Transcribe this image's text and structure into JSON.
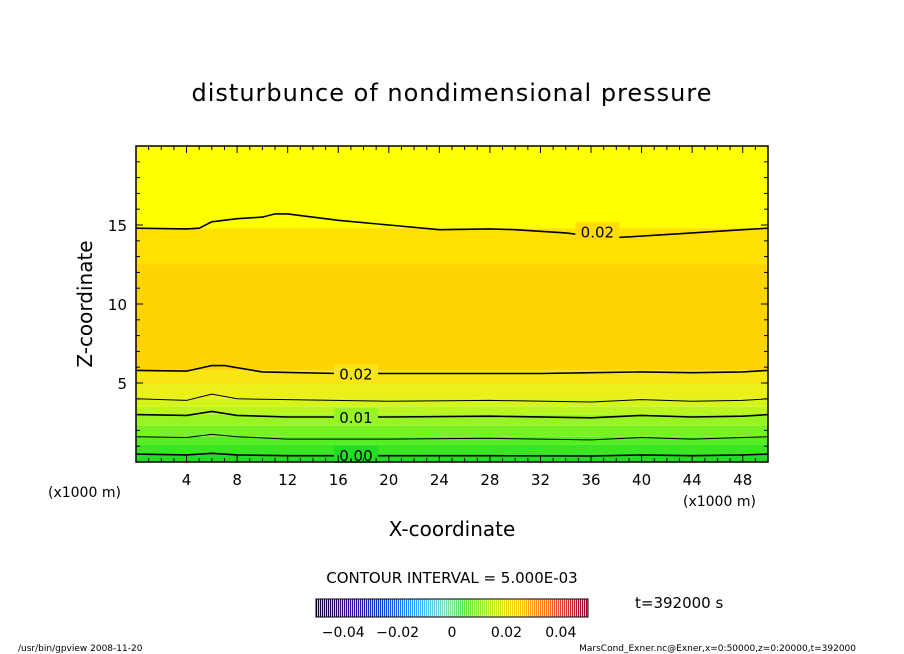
{
  "chart_data": {
    "type": "heatmap",
    "title": "disturbunce of nondimensional pressure",
    "xlabel": "X-coordinate",
    "ylabel": "Z-coordinate",
    "x_unit_left": "(x1000 m)",
    "x_unit_right": "(x1000 m)",
    "xlim": [
      0,
      50
    ],
    "ylim": [
      0,
      20
    ],
    "x_ticks": [
      4,
      8,
      12,
      16,
      20,
      24,
      28,
      32,
      36,
      40,
      44,
      48
    ],
    "y_ticks": [
      5,
      10,
      15
    ],
    "x_tick_labels": [
      "4",
      "8",
      "12",
      "16",
      "20",
      "24",
      "28",
      "32",
      "36",
      "40",
      "44",
      "48"
    ],
    "y_tick_labels": [
      "5",
      "10",
      "15"
    ],
    "contour_interval_text": "CONTOUR INTERVAL = 5.000E-03",
    "time_text": "t=392000 s",
    "colorbar": {
      "min": -0.05,
      "max": 0.05,
      "tick_values": [
        -0.04,
        -0.02,
        0,
        0.02,
        0.04
      ],
      "tick_labels": [
        "−0.04",
        "−0.02",
        "0",
        "0.02",
        "0.04"
      ]
    },
    "contours": [
      {
        "level": 0.02,
        "label": "0.02",
        "label_x": 36.5,
        "label_y": 14.6,
        "points": [
          [
            0,
            14.8
          ],
          [
            4,
            14.75
          ],
          [
            5,
            14.8
          ],
          [
            6,
            15.2
          ],
          [
            8,
            15.4
          ],
          [
            10,
            15.5
          ],
          [
            11,
            15.7
          ],
          [
            12,
            15.7
          ],
          [
            16,
            15.3
          ],
          [
            20,
            15.0
          ],
          [
            24,
            14.7
          ],
          [
            28,
            14.75
          ],
          [
            30,
            14.7
          ],
          [
            34,
            14.5
          ],
          [
            36,
            14.3
          ],
          [
            38,
            14.2
          ],
          [
            40,
            14.3
          ],
          [
            44,
            14.5
          ],
          [
            48,
            14.7
          ],
          [
            50,
            14.8
          ]
        ]
      },
      {
        "level": 0.02,
        "label": "0.02",
        "label_x": 17.4,
        "label_y": 5.6,
        "points": [
          [
            0,
            5.8
          ],
          [
            4,
            5.75
          ],
          [
            6,
            6.1
          ],
          [
            7,
            6.1
          ],
          [
            10,
            5.7
          ],
          [
            16,
            5.6
          ],
          [
            24,
            5.6
          ],
          [
            32,
            5.6
          ],
          [
            36,
            5.65
          ],
          [
            40,
            5.7
          ],
          [
            44,
            5.65
          ],
          [
            48,
            5.7
          ],
          [
            50,
            5.8
          ]
        ]
      },
      {
        "level": 0.015,
        "label": "",
        "label_x": 0,
        "label_y": 0,
        "points": [
          [
            0,
            4.0
          ],
          [
            4,
            3.9
          ],
          [
            6,
            4.3
          ],
          [
            8,
            4.0
          ],
          [
            12,
            3.95
          ],
          [
            20,
            3.85
          ],
          [
            28,
            3.9
          ],
          [
            36,
            3.8
          ],
          [
            40,
            3.95
          ],
          [
            44,
            3.85
          ],
          [
            48,
            3.9
          ],
          [
            50,
            4.0
          ]
        ]
      },
      {
        "level": 0.01,
        "label": "0.01",
        "label_x": 17.4,
        "label_y": 2.85,
        "points": [
          [
            0,
            3.0
          ],
          [
            4,
            2.95
          ],
          [
            6,
            3.2
          ],
          [
            8,
            2.95
          ],
          [
            12,
            2.85
          ],
          [
            20,
            2.85
          ],
          [
            28,
            2.9
          ],
          [
            36,
            2.8
          ],
          [
            40,
            2.95
          ],
          [
            44,
            2.85
          ],
          [
            48,
            2.9
          ],
          [
            50,
            3.0
          ]
        ]
      },
      {
        "level": 0.005,
        "label": "",
        "label_x": 0,
        "label_y": 0,
        "points": [
          [
            0,
            1.6
          ],
          [
            4,
            1.55
          ],
          [
            6,
            1.75
          ],
          [
            8,
            1.6
          ],
          [
            12,
            1.45
          ],
          [
            20,
            1.45
          ],
          [
            28,
            1.5
          ],
          [
            36,
            1.4
          ],
          [
            40,
            1.55
          ],
          [
            44,
            1.45
          ],
          [
            48,
            1.55
          ],
          [
            50,
            1.6
          ]
        ]
      },
      {
        "level": 0.0,
        "label": "0.00",
        "label_x": 17.4,
        "label_y": 0.45,
        "points": [
          [
            0,
            0.5
          ],
          [
            4,
            0.45
          ],
          [
            6,
            0.55
          ],
          [
            8,
            0.45
          ],
          [
            12,
            0.4
          ],
          [
            20,
            0.4
          ],
          [
            28,
            0.4
          ],
          [
            36,
            0.38
          ],
          [
            40,
            0.45
          ],
          [
            44,
            0.4
          ],
          [
            48,
            0.45
          ],
          [
            50,
            0.5
          ]
        ]
      }
    ],
    "fill_bands": [
      {
        "y_bottom": 0.0,
        "y_top": 0.5,
        "color": "#22dd22"
      },
      {
        "y_bottom": 0.5,
        "y_top": 1.1,
        "color": "#3ae622"
      },
      {
        "y_bottom": 1.1,
        "y_top": 1.6,
        "color": "#55ee22"
      },
      {
        "y_bottom": 1.6,
        "y_top": 2.3,
        "color": "#77f222"
      },
      {
        "y_bottom": 2.3,
        "y_top": 3.0,
        "color": "#99f522"
      },
      {
        "y_bottom": 3.0,
        "y_top": 3.5,
        "color": "#bbf520"
      },
      {
        "y_bottom": 3.5,
        "y_top": 4.0,
        "color": "#d4f51c"
      },
      {
        "y_bottom": 4.0,
        "y_top": 4.9,
        "color": "#eaf018"
      },
      {
        "y_bottom": 4.9,
        "y_top": 5.8,
        "color": "#f8e614"
      },
      {
        "y_bottom": 5.8,
        "y_top": 12.5,
        "color": "#ffd400"
      },
      {
        "y_bottom": 12.5,
        "y_top": 14.8,
        "color": "#ffe000"
      },
      {
        "y_bottom": 14.8,
        "y_top": 20.0,
        "color": "#ffff00"
      }
    ]
  },
  "footer": {
    "left": "/usr/bin/gpview  2008-11-20",
    "right": "MarsCond_Exner.nc@Exner,x=0:50000,z=0:20000,t=392000"
  }
}
